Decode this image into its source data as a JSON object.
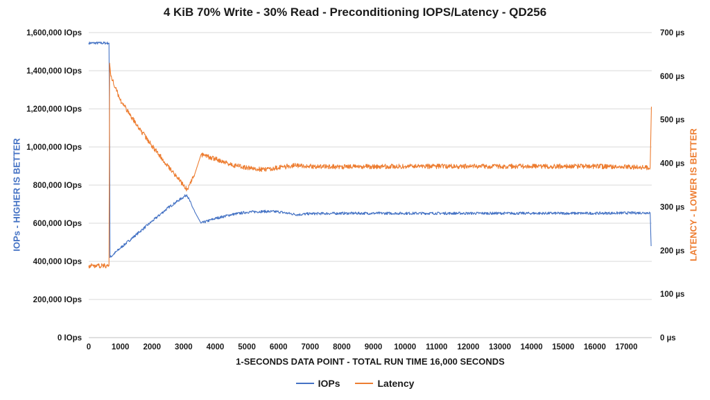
{
  "chart_data": {
    "type": "line",
    "title": "4 KiB 70% Write - 30% Read - Preconditioning IOPS/Latency - QD256",
    "xlabel": "1-SECONDS DATA POINT - TOTAL RUN TIME 16,000 SECONDS",
    "ylabel_left": "IOPs - HIGHER IS BETTER",
    "ylabel_right": "LATENCY - LOWER IS BETTER",
    "xlim": [
      0,
      17800
    ],
    "ylim_left": [
      0,
      1600000
    ],
    "ylim_right": [
      0,
      700
    ],
    "x_ticks": [
      "0",
      "1000",
      "2000",
      "3000",
      "4000",
      "5000",
      "6000",
      "7000",
      "8000",
      "9000",
      "10000",
      "11000",
      "12000",
      "13000",
      "14000",
      "15000",
      "16000",
      "17000"
    ],
    "y_ticks_left": [
      "0 IOps",
      "200,000 IOps",
      "400,000 IOps",
      "600,000 IOps",
      "800,000 IOps",
      "1,000,000 IOps",
      "1,200,000 IOps",
      "1,400,000 IOps",
      "1,600,000 IOps"
    ],
    "y_ticks_right": [
      "0 µs",
      "100 µs",
      "200 µs",
      "300 µs",
      "400 µs",
      "500 µs",
      "600 µs",
      "700 µs"
    ],
    "grid": true,
    "legend_position": "bottom",
    "series": [
      {
        "name": "IOPs",
        "axis": "left",
        "color": "#4472C4",
        "points": [
          [
            0,
            1545000
          ],
          [
            640,
            1545000
          ],
          [
            660,
            1000000
          ],
          [
            670,
            420000
          ],
          [
            1000,
            470000
          ],
          [
            1500,
            540000
          ],
          [
            2000,
            610000
          ],
          [
            2500,
            680000
          ],
          [
            3100,
            750000
          ],
          [
            3350,
            660000
          ],
          [
            3550,
            600000
          ],
          [
            4000,
            625000
          ],
          [
            4500,
            645000
          ],
          [
            5000,
            658000
          ],
          [
            5500,
            662000
          ],
          [
            6000,
            660000
          ],
          [
            6300,
            652000
          ],
          [
            6600,
            645000
          ],
          [
            7000,
            650000
          ],
          [
            8000,
            652000
          ],
          [
            10000,
            652000
          ],
          [
            12000,
            652000
          ],
          [
            14000,
            652000
          ],
          [
            16000,
            652000
          ],
          [
            17750,
            655000
          ],
          [
            17780,
            480000
          ]
        ]
      },
      {
        "name": "Latency",
        "axis": "right",
        "color": "#ED7D31",
        "points": [
          [
            0,
            165
          ],
          [
            640,
            165
          ],
          [
            660,
            630
          ],
          [
            700,
            600
          ],
          [
            1000,
            545
          ],
          [
            1500,
            490
          ],
          [
            2000,
            440
          ],
          [
            2500,
            395
          ],
          [
            3100,
            340
          ],
          [
            3350,
            375
          ],
          [
            3550,
            420
          ],
          [
            4000,
            410
          ],
          [
            4500,
            397
          ],
          [
            5000,
            390
          ],
          [
            5500,
            386
          ],
          [
            6000,
            390
          ],
          [
            6500,
            395
          ],
          [
            7000,
            393
          ],
          [
            8000,
            392
          ],
          [
            10000,
            393
          ],
          [
            12000,
            393
          ],
          [
            14000,
            393
          ],
          [
            16000,
            393
          ],
          [
            17750,
            390
          ],
          [
            17790,
            530
          ]
        ]
      }
    ]
  }
}
